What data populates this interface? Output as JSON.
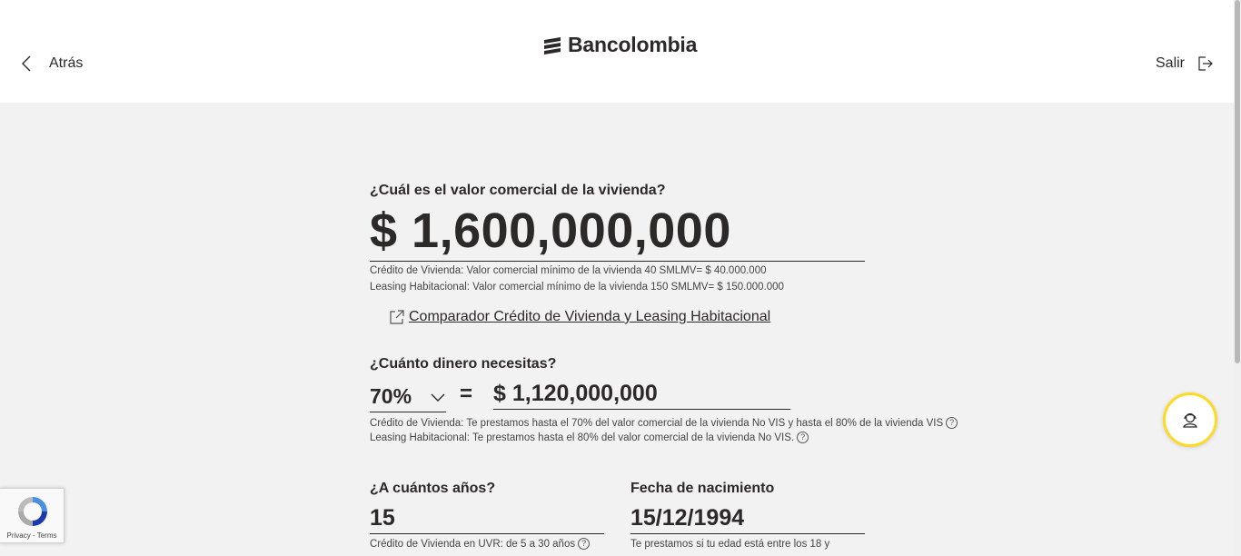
{
  "header": {
    "back_label": "Atrás",
    "brand": "Bancolombia",
    "exit_label": "Salir"
  },
  "property": {
    "question": "¿Cuál es el valor comercial de la vivienda?",
    "value": "$ 1,600,000,000",
    "hint_1": "Crédito de Vivienda: Valor comercial mínimo de la vivienda 40 SMLMV= $ 40.000.000",
    "hint_2": "Leasing Habitacional: Valor comercial mínimo de la vivienda 150 SMLMV= $ 150.000.000",
    "comparator_link": " Comparador Crédito de Vivienda y Leasing Habitacional"
  },
  "loan": {
    "question": "¿Cuánto dinero necesitas?",
    "percent": "70%",
    "equals": "=",
    "amount": "$ 1,120,000,000",
    "hint_1": "Crédito de Vivienda: Te prestamos hasta el 70% del valor comercial de la vivienda No VIS y hasta el 80% de la vivienda VIS",
    "hint_2": "Leasing Habitacional: Te prestamos hasta el 80% del valor comercial de la vivienda No VIS."
  },
  "years": {
    "question": "¿A cuántos años?",
    "value": "15",
    "hint": "Crédito de Vivienda en UVR: de 5 a 30 años"
  },
  "birth": {
    "question": "Fecha de nacimiento",
    "value": "15/12/1994",
    "hint": "Te prestamos si tu edad está entre los 18 y"
  },
  "help_icon_glyph": "?",
  "recaptcha": {
    "links": "Privacy - Terms"
  },
  "colors": {
    "accent_yellow": "#fdda24",
    "text": "#2c2a29",
    "background": "#f2f2f2"
  },
  "icons": {
    "back": "chevron-left-icon",
    "exit": "logout-icon",
    "link": "external-link-icon",
    "dropdown": "chevron-down-icon",
    "help": "question-circle-icon",
    "fab": "support-agent-icon"
  }
}
